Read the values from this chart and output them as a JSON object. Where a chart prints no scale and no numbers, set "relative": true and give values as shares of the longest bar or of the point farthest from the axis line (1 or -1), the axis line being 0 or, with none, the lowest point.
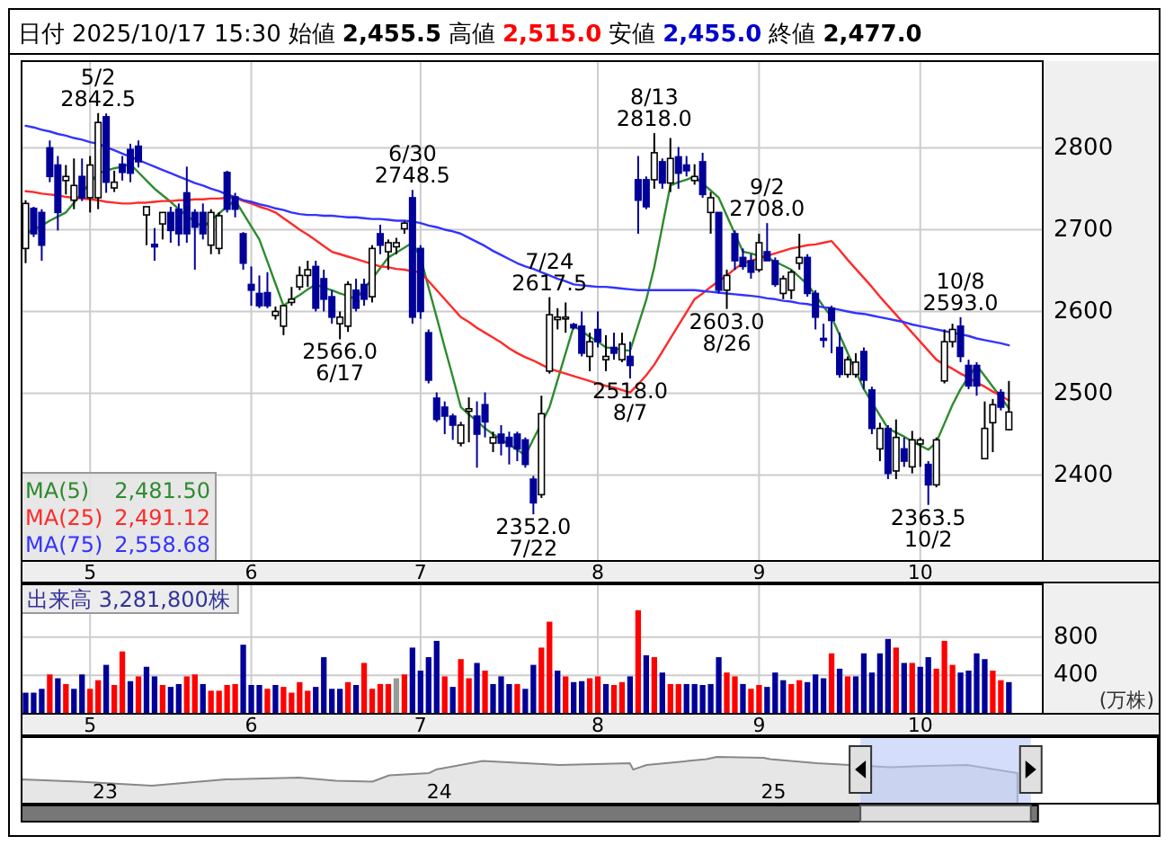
{
  "chart_data": [
    {
      "type": "candlestick",
      "title": "日付 2025/10/17 15:30 始値 2,455.5 高値 2,515.0 安値 2,455.0 終値 2,477.0",
      "categories": [
        null,
        null,
        null,
        null,
        null,
        null,
        null,
        null,
        "5",
        null,
        null,
        null,
        null,
        null,
        null,
        null,
        null,
        null,
        null,
        null,
        null,
        null,
        null,
        null,
        null,
        null,
        null,
        null,
        "6",
        null,
        null,
        null,
        null,
        null,
        null,
        null,
        null,
        null,
        null,
        null,
        null,
        null,
        null,
        null,
        null,
        null,
        null,
        null,
        null,
        "7",
        null,
        null,
        null,
        null,
        null,
        null,
        null,
        null,
        null,
        null,
        null,
        null,
        null,
        null,
        null,
        null,
        null,
        null,
        null,
        null,
        null,
        "8",
        null,
        null,
        null,
        null,
        null,
        null,
        null,
        null,
        null,
        null,
        null,
        null,
        null,
        null,
        null,
        null,
        null,
        null,
        null,
        "9",
        null,
        null,
        null,
        null,
        null,
        null,
        null,
        null,
        null,
        null,
        null,
        null,
        null,
        null,
        null,
        null,
        null,
        null,
        null,
        "10",
        null,
        null,
        null,
        null,
        null,
        null,
        null,
        null,
        null,
        null,
        null
      ],
      "ohlc": [
        [
          2677,
          2736,
          2659,
          2732
        ],
        [
          2726,
          2728,
          2691,
          2695
        ],
        [
          2721,
          2725,
          2662,
          2681
        ],
        [
          2800,
          2809,
          2758,
          2765
        ],
        [
          2779,
          2790,
          2699,
          2721
        ],
        [
          2760,
          2779,
          2743,
          2765
        ],
        [
          2736,
          2787,
          2725,
          2754
        ],
        [
          2765,
          2787,
          2735,
          2739
        ],
        [
          2739,
          2790,
          2721,
          2779
        ],
        [
          2739,
          2842.5,
          2725,
          2831
        ],
        [
          2838,
          2842,
          2745,
          2758
        ],
        [
          2751,
          2772,
          2746,
          2758
        ],
        [
          2780,
          2790,
          2760,
          2770
        ],
        [
          2798,
          2805,
          2758,
          2769
        ],
        [
          2802,
          2809,
          2776,
          2783
        ],
        [
          2718,
          2728,
          2681,
          2728
        ],
        [
          2682,
          2702,
          2662,
          2679
        ],
        [
          2707,
          2721,
          2688,
          2721
        ],
        [
          2721,
          2728,
          2684,
          2699
        ],
        [
          2725,
          2732,
          2680,
          2695
        ],
        [
          2745,
          2777,
          2684,
          2695
        ],
        [
          2721,
          2725,
          2651,
          2703
        ],
        [
          2721,
          2732,
          2688,
          2695
        ],
        [
          2681,
          2725,
          2670,
          2721
        ],
        [
          2677,
          2721,
          2670,
          2717
        ],
        [
          2770,
          2772,
          2721,
          2725
        ],
        [
          2740,
          2745,
          2715,
          2725
        ],
        [
          2695,
          2697,
          2651,
          2659
        ],
        [
          2633,
          2655,
          2607,
          2626
        ],
        [
          2622,
          2644,
          2604,
          2607
        ],
        [
          2623,
          2648,
          2604,
          2607
        ],
        [
          2595,
          2606,
          2590,
          2600
        ],
        [
          2582,
          2607,
          2571,
          2607
        ],
        [
          2611,
          2630,
          2607,
          2615
        ],
        [
          2630,
          2655,
          2626,
          2644
        ],
        [
          2644,
          2662,
          2630,
          2651
        ],
        [
          2655,
          2662,
          2600,
          2604
        ],
        [
          2640,
          2651,
          2600,
          2615
        ],
        [
          2618,
          2626,
          2585,
          2593
        ],
        [
          2585,
          2600,
          2566,
          2593
        ],
        [
          2582,
          2637,
          2575,
          2633
        ],
        [
          2626,
          2640,
          2600,
          2604
        ],
        [
          2633,
          2640,
          2607,
          2615
        ],
        [
          2618,
          2681,
          2611,
          2677
        ],
        [
          2695,
          2706,
          2670,
          2681
        ],
        [
          2673,
          2688,
          2651,
          2684
        ],
        [
          2679,
          2690,
          2670,
          2684
        ],
        [
          2701,
          2710,
          2695,
          2708
        ],
        [
          2739,
          2748.5,
          2585,
          2593
        ],
        [
          2677,
          2681,
          2591,
          2600
        ],
        [
          2574,
          2578,
          2512,
          2516
        ],
        [
          2494,
          2501,
          2465,
          2468
        ],
        [
          2483,
          2490,
          2450,
          2472
        ],
        [
          2472,
          2475,
          2443,
          2461
        ],
        [
          2439,
          2465,
          2435,
          2461
        ],
        [
          2478,
          2495,
          2440,
          2481
        ],
        [
          2472,
          2490,
          2409,
          2450
        ],
        [
          2486,
          2501,
          2446,
          2465
        ],
        [
          2439,
          2453,
          2428,
          2446
        ],
        [
          2450,
          2461,
          2424,
          2439
        ],
        [
          2446,
          2453,
          2413,
          2435
        ],
        [
          2450,
          2453,
          2417,
          2432
        ],
        [
          2443,
          2446,
          2409,
          2413
        ],
        [
          2395,
          2399,
          2352,
          2366
        ],
        [
          2376,
          2497,
          2372,
          2475
        ],
        [
          2527,
          2617.5,
          2524,
          2596
        ],
        [
          2590,
          2604,
          2578,
          2593
        ],
        [
          2591,
          2611,
          2574,
          2593
        ],
        [
          2584,
          2586,
          2578,
          2580
        ],
        [
          2582,
          2600,
          2545,
          2549
        ],
        [
          2545,
          2574,
          2527,
          2563
        ],
        [
          2578,
          2600,
          2556,
          2563
        ],
        [
          2541,
          2571,
          2527,
          2545
        ],
        [
          2556,
          2574,
          2541,
          2549
        ],
        [
          2541,
          2574,
          2538,
          2560
        ],
        [
          2545,
          2563,
          2518,
          2534
        ],
        [
          2761,
          2790,
          2695,
          2736
        ],
        [
          2761,
          2765,
          2725,
          2728
        ],
        [
          2761,
          2818,
          2750,
          2794
        ],
        [
          2783,
          2787,
          2750,
          2757
        ],
        [
          2757,
          2812,
          2746,
          2787
        ],
        [
          2789,
          2801,
          2750,
          2769
        ],
        [
          2779,
          2790,
          2765,
          2772
        ],
        [
          2760,
          2780,
          2755,
          2765
        ],
        [
          2783,
          2794,
          2739,
          2743
        ],
        [
          2721,
          2746,
          2695,
          2739
        ],
        [
          2721,
          2721,
          2622,
          2626
        ],
        [
          2626,
          2651,
          2603,
          2644
        ],
        [
          2695,
          2699,
          2651,
          2662
        ],
        [
          2666,
          2677,
          2651,
          2655
        ],
        [
          2662,
          2670,
          2640,
          2648
        ],
        [
          2651,
          2695,
          2648,
          2684
        ],
        [
          2673,
          2708,
          2662,
          2662
        ],
        [
          2662,
          2666,
          2630,
          2633
        ],
        [
          2622,
          2644,
          2615,
          2640
        ],
        [
          2626,
          2651,
          2615,
          2648
        ],
        [
          2659,
          2695,
          2651,
          2666
        ],
        [
          2666,
          2670,
          2618,
          2622
        ],
        [
          2622,
          2626,
          2578,
          2593
        ],
        [
          2567,
          2585,
          2556,
          2565
        ],
        [
          2604,
          2607,
          2549,
          2589
        ],
        [
          2556,
          2574,
          2519,
          2523
        ],
        [
          2523,
          2545,
          2519,
          2541
        ],
        [
          2523,
          2549,
          2519,
          2538
        ],
        [
          2551,
          2556,
          2505,
          2516
        ],
        [
          2504,
          2508,
          2450,
          2457
        ],
        [
          2432,
          2464,
          2417,
          2457
        ],
        [
          2457,
          2461,
          2395,
          2402
        ],
        [
          2405,
          2468,
          2395,
          2446
        ],
        [
          2432,
          2446,
          2410,
          2417
        ],
        [
          2410,
          2454,
          2402,
          2443
        ],
        [
          2438,
          2446,
          2410,
          2443
        ],
        [
          2413,
          2417,
          2363.5,
          2388
        ],
        [
          2388,
          2446,
          2385,
          2443
        ],
        [
          2515,
          2578,
          2512,
          2563
        ],
        [
          2563,
          2585,
          2556,
          2578
        ],
        [
          2582,
          2593,
          2538,
          2545
        ],
        [
          2534,
          2541,
          2505,
          2509
        ],
        [
          2534,
          2538,
          2497,
          2509
        ],
        [
          2420,
          2490,
          2420,
          2457
        ],
        [
          2464,
          2493,
          2428,
          2486
        ],
        [
          2501,
          2505,
          2479,
          2483
        ],
        [
          2455.5,
          2515,
          2455,
          2477
        ]
      ],
      "colors": [
        "#ffffff",
        "#000099",
        "#000099",
        "#000099",
        "#000099",
        "#ffffff",
        "#ffffff",
        "#000099",
        "#ffffff",
        "#ffffff",
        "#000099",
        "#ffffff",
        "#000099",
        "#000099",
        "#000099",
        "#ffffff",
        "#000099",
        "#ffffff",
        "#000099",
        "#000099",
        "#000099",
        "#000099",
        "#000099",
        "#ffffff",
        "#ffffff",
        "#000099",
        "#000099",
        "#000099",
        "#000099",
        "#000099",
        "#000099",
        "#ffffff",
        "#ffffff",
        "#ffffff",
        "#ffffff",
        "#ffffff",
        "#000099",
        "#000099",
        "#000099",
        "#ffffff",
        "#ffffff",
        "#000099",
        "#000099",
        "#ffffff",
        "#000099",
        "#ffffff",
        "#ffffff",
        "#ffffff",
        "#000099",
        "#000099",
        "#000099",
        "#000099",
        "#000099",
        "#000099",
        "#ffffff",
        "#ffffff",
        "#000099",
        "#000099",
        "#ffffff",
        "#000099",
        "#000099",
        "#000099",
        "#000099",
        "#000099",
        "#ffffff",
        "#ffffff",
        "#ffffff",
        "#ffffff",
        "#000099",
        "#000099",
        "#ffffff",
        "#000099",
        "#ffffff",
        "#000099",
        "#ffffff",
        "#000099",
        "#000099",
        "#000099",
        "#ffffff",
        "#000099",
        "#ffffff",
        "#000099",
        "#000099",
        "#ffffff",
        "#000099",
        "#ffffff",
        "#000099",
        "#ffffff",
        "#000099",
        "#000099",
        "#000099",
        "#ffffff",
        "#000099",
        "#000099",
        "#ffffff",
        "#ffffff",
        "#ffffff",
        "#000099",
        "#000099",
        "#000099",
        "#000099",
        "#000099",
        "#ffffff",
        "#ffffff",
        "#000099",
        "#000099",
        "#ffffff",
        "#000099",
        "#ffffff",
        "#000099",
        "#ffffff",
        "#ffffff",
        "#000099",
        "#ffffff",
        "#ffffff",
        "#ffffff",
        "#000099",
        "#000099",
        "#000099",
        "#ffffff",
        "#ffffff",
        "#000099",
        "#ffffff"
      ],
      "series": [
        {
          "type": "line",
          "name": "MA(5) 2,481.50",
          "color": "#2e8b2e",
          "values": [
            2695,
            2700,
            2705,
            2711,
            2716,
            2721,
            2733,
            2745,
            2757,
            2769,
            2772,
            2775,
            2777,
            2780,
            2770,
            2760,
            2750,
            2742,
            2734,
            2725,
            2717,
            2710,
            2703,
            2711,
            2720,
            2728,
            2736,
            2720,
            2704,
            2688,
            2661,
            2634,
            2607,
            2614,
            2620,
            2627,
            2633,
            2629,
            2626,
            2622,
            2619,
            2615,
            2628,
            2640,
            2653,
            2666,
            2672,
            2678,
            2684,
            2666,
            2629,
            2593,
            2556,
            2520,
            2483,
            2474,
            2466,
            2457,
            2450,
            2444,
            2437,
            2431,
            2424,
            2444,
            2463,
            2483,
            2516,
            2549,
            2582,
            2576,
            2569,
            2563,
            2556,
            2555,
            2553,
            2552,
            2583,
            2614,
            2654,
            2704,
            2754,
            2758,
            2761,
            2765,
            2756,
            2748,
            2739,
            2717,
            2695,
            2673,
            2671,
            2668,
            2666,
            2661,
            2656,
            2651,
            2642,
            2633,
            2620,
            2606,
            2593,
            2571,
            2549,
            2527,
            2505,
            2489,
            2473,
            2457,
            2452,
            2447,
            2441,
            2436,
            2431,
            2440,
            2463,
            2486,
            2505,
            2520,
            2534,
            2521,
            2508,
            2495,
            2481.5
          ]
        },
        {
          "type": "line",
          "name": "MA(25) 2,491.12",
          "color": "#ff2a2a",
          "values": [
            2747,
            2746,
            2744,
            2743,
            2742,
            2740,
            2739,
            2738,
            2737,
            2736,
            2734,
            2733,
            2732,
            2732,
            2733,
            2733,
            2734,
            2735,
            2735,
            2736,
            2736,
            2737,
            2737,
            2738,
            2738,
            2739,
            2739,
            2735,
            2732,
            2728,
            2725,
            2721,
            2714,
            2707,
            2700,
            2694,
            2687,
            2680,
            2673,
            2670,
            2667,
            2664,
            2661,
            2658,
            2655,
            2654,
            2652,
            2651,
            2649,
            2648,
            2637,
            2626,
            2615,
            2604,
            2593,
            2587,
            2580,
            2574,
            2568,
            2562,
            2555,
            2549,
            2544,
            2540,
            2535,
            2530,
            2527,
            2524,
            2521,
            2518,
            2515,
            2512,
            2509,
            2507,
            2504,
            2501,
            2511,
            2522,
            2535,
            2551,
            2567,
            2583,
            2599,
            2615,
            2622,
            2630,
            2637,
            2644,
            2652,
            2659,
            2662,
            2665,
            2668,
            2671,
            2674,
            2677,
            2679,
            2681,
            2682,
            2684,
            2686,
            2675,
            2663,
            2652,
            2641,
            2630,
            2618,
            2607,
            2596,
            2585,
            2574,
            2563,
            2552,
            2541,
            2535,
            2530,
            2524,
            2519,
            2513,
            2508,
            2502,
            2497,
            2491.12
          ]
        },
        {
          "type": "line",
          "name": "MA(75) 2,558.68",
          "color": "#3333ff",
          "values": [
            2827,
            2825,
            2822,
            2820,
            2817,
            2815,
            2812,
            2810,
            2807,
            2805,
            2801,
            2797,
            2793,
            2789,
            2785,
            2781,
            2777,
            2773,
            2769,
            2765,
            2761,
            2757,
            2754,
            2750,
            2747,
            2743,
            2740,
            2736,
            2734,
            2731,
            2729,
            2726,
            2724,
            2721,
            2719,
            2718,
            2718,
            2717,
            2717,
            2716,
            2715,
            2715,
            2714,
            2713,
            2713,
            2712,
            2711,
            2711,
            2710,
            2708,
            2705,
            2703,
            2700,
            2698,
            2695,
            2690,
            2685,
            2680,
            2674,
            2669,
            2664,
            2659,
            2655,
            2652,
            2648,
            2644,
            2640,
            2637,
            2633,
            2632,
            2631,
            2630,
            2630,
            2629,
            2628,
            2627,
            2626,
            2626,
            2626,
            2626,
            2626,
            2626,
            2626,
            2626,
            2625,
            2624,
            2623,
            2622,
            2621,
            2620,
            2619,
            2618,
            2616,
            2615,
            2613,
            2612,
            2610,
            2609,
            2607,
            2605,
            2604,
            2602,
            2600,
            2598,
            2597,
            2595,
            2593,
            2591,
            2589,
            2587,
            2584,
            2582,
            2580,
            2578,
            2576,
            2574,
            2572,
            2570,
            2567,
            2565,
            2563,
            2561,
            2558.68
          ]
        }
      ],
      "ylim": [
        2295,
        2906
      ],
      "yticks": [
        2400,
        2500,
        2600,
        2700,
        2800
      ],
      "grid": true,
      "legend": "bottom left",
      "annotations": [
        {
          "text": "5/2\n2842.5",
          "y": 2842.5
        },
        {
          "text": "2566.0\n6/17",
          "y": 2566
        },
        {
          "text": "6/30\n2748.5",
          "y": 2748.5
        },
        {
          "text": "2352.0\n7/22",
          "y": 2352
        },
        {
          "text": "7/24\n2617.5",
          "y": 2617.5
        },
        {
          "text": "2518.0\n8/7",
          "y": 2518
        },
        {
          "text": "8/13\n2818.0",
          "y": 2818
        },
        {
          "text": "2603.0\n8/26",
          "y": 2603
        },
        {
          "text": "9/2\n2708.0",
          "y": 2708
        },
        {
          "text": "2363.5\n10/2",
          "y": 2363.5
        },
        {
          "text": "10/8\n2593.0",
          "y": 2593
        }
      ]
    },
    {
      "type": "bar",
      "title": "出来高 3,281,800株",
      "ylabel": "(万株)",
      "categories": [
        null,
        null,
        null,
        null,
        null,
        null,
        null,
        null,
        "5",
        null,
        null,
        null,
        null,
        null,
        null,
        null,
        null,
        null,
        null,
        null,
        null,
        null,
        null,
        null,
        null,
        null,
        null,
        null,
        "6",
        null,
        null,
        null,
        null,
        null,
        null,
        null,
        null,
        null,
        null,
        null,
        null,
        null,
        null,
        null,
        null,
        null,
        null,
        null,
        null,
        "7",
        null,
        null,
        null,
        null,
        null,
        null,
        null,
        null,
        null,
        null,
        null,
        null,
        null,
        null,
        null,
        null,
        null,
        null,
        null,
        null,
        null,
        "8",
        null,
        null,
        null,
        null,
        null,
        null,
        null,
        null,
        null,
        null,
        null,
        null,
        null,
        null,
        null,
        null,
        null,
        null,
        null,
        "9",
        null,
        null,
        null,
        null,
        null,
        null,
        null,
        null,
        null,
        null,
        null,
        null,
        null,
        null,
        null,
        null,
        null,
        null,
        null,
        "10",
        null,
        null,
        null,
        null,
        null,
        null,
        null,
        null,
        null,
        null,
        null
      ],
      "values": [
        220,
        220,
        260,
        410,
        370,
        310,
        260,
        410,
        260,
        350,
        510,
        300,
        650,
        340,
        390,
        490,
        390,
        300,
        280,
        310,
        390,
        410,
        310,
        240,
        240,
        300,
        310,
        720,
        300,
        300,
        260,
        300,
        280,
        220,
        330,
        240,
        280,
        590,
        260,
        260,
        330,
        300,
        530,
        260,
        310,
        310,
        370,
        410,
        690,
        450,
        590,
        760,
        390,
        280,
        570,
        370,
        530,
        450,
        310,
        390,
        310,
        310,
        260,
        510,
        690,
        960,
        450,
        390,
        330,
        340,
        370,
        390,
        310,
        300,
        330,
        390,
        1080,
        610,
        590,
        430,
        310,
        310,
        310,
        310,
        300,
        310,
        590,
        430,
        390,
        310,
        260,
        300,
        280,
        430,
        350,
        310,
        350,
        330,
        410,
        370,
        630,
        470,
        390,
        390,
        630,
        430,
        630,
        780,
        690,
        530,
        530,
        490,
        590,
        470,
        760,
        510,
        430,
        450,
        630,
        570,
        450,
        350,
        330
      ],
      "colors": [
        "#000099",
        "#000099",
        "#000099",
        "#ff0000",
        "#000099",
        "#ff0000",
        "#000099",
        "#000099",
        "#ff0000",
        "#ff0000",
        "#000099",
        "#ff0000",
        "#ff0000",
        "#000099",
        "#ff0000",
        "#000099",
        "#000099",
        "#ff0000",
        "#000099",
        "#000099",
        "#ff0000",
        "#ff0000",
        "#000099",
        "#ff0000",
        "#ff0000",
        "#ff0000",
        "#ff0000",
        "#000099",
        "#000099",
        "#000099",
        "#ff0000",
        "#000099",
        "#ff0000",
        "#ff0000",
        "#ff0000",
        "#ff0000",
        "#000099",
        "#000099",
        "#000099",
        "#000099",
        "#ff0000",
        "#000099",
        "#ff0000",
        "#ff0000",
        "#ff0000",
        "#ff0000",
        "#999999",
        "#ff0000",
        "#000099",
        "#000099",
        "#000099",
        "#000099",
        "#ff0000",
        "#000099",
        "#ff0000",
        "#ff0000",
        "#000099",
        "#ff0000",
        "#000099",
        "#000099",
        "#000099",
        "#ff0000",
        "#000099",
        "#000099",
        "#ff0000",
        "#ff0000",
        "#000099",
        "#ff0000",
        "#000099",
        "#000099",
        "#ff0000",
        "#ff0000",
        "#000099",
        "#ff0000",
        "#ff0000",
        "#000099",
        "#ff0000",
        "#000099",
        "#ff0000",
        "#000099",
        "#ff0000",
        "#ff0000",
        "#000099",
        "#000099",
        "#000099",
        "#000099",
        "#000099",
        "#ff0000",
        "#ff0000",
        "#000099",
        "#ff0000",
        "#ff0000",
        "#000099",
        "#000099",
        "#000099",
        "#ff0000",
        "#ff0000",
        "#000099",
        "#000099",
        "#000099",
        "#ff0000",
        "#000099",
        "#ff0000",
        "#000099",
        "#000099",
        "#000099",
        "#000099",
        "#000099",
        "#ff0000",
        "#000099",
        "#ff0000",
        "#000099",
        "#000099",
        "#ff0000",
        "#ff0000",
        "#ff0000",
        "#000099",
        "#000099",
        "#000099",
        "#000099",
        "#ff0000",
        "#ff0000",
        "#000099"
      ],
      "ylim": [
        0,
        1350
      ],
      "yticks": [
        400,
        800
      ],
      "grid": true
    },
    {
      "type": "area",
      "relative": true,
      "tick_labels": "x",
      "x": [
        22.75,
        22.92,
        23.14,
        23.36,
        23.58,
        23.69,
        23.8,
        23.85,
        23.97,
        23.99,
        24.13,
        24.36,
        24.57,
        24.58,
        24.62,
        24.8,
        24.83,
        24.97,
        24.99,
        25.13,
        25.35,
        25.47,
        25.58,
        25.73
      ],
      "series": [
        {
          "color": "#888888",
          "values": [
            0.22,
            0.14,
            0,
            0.22,
            0.28,
            0.17,
            0.14,
            0.36,
            0.44,
            0.56,
            0.86,
            0.72,
            0.78,
            0.56,
            0.72,
            0.92,
            1,
            0.97,
            0.92,
            0.78,
            0.64,
            0.69,
            0.72,
            0.44
          ]
        }
      ],
      "xlim": [
        22.75,
        26.15
      ],
      "xticks": [
        23,
        24,
        25
      ],
      "bands": [
        {
          "axis": "x",
          "from": 25.26,
          "to": 25.77,
          "color": "#b8c8f8"
        }
      ]
    }
  ]
}
